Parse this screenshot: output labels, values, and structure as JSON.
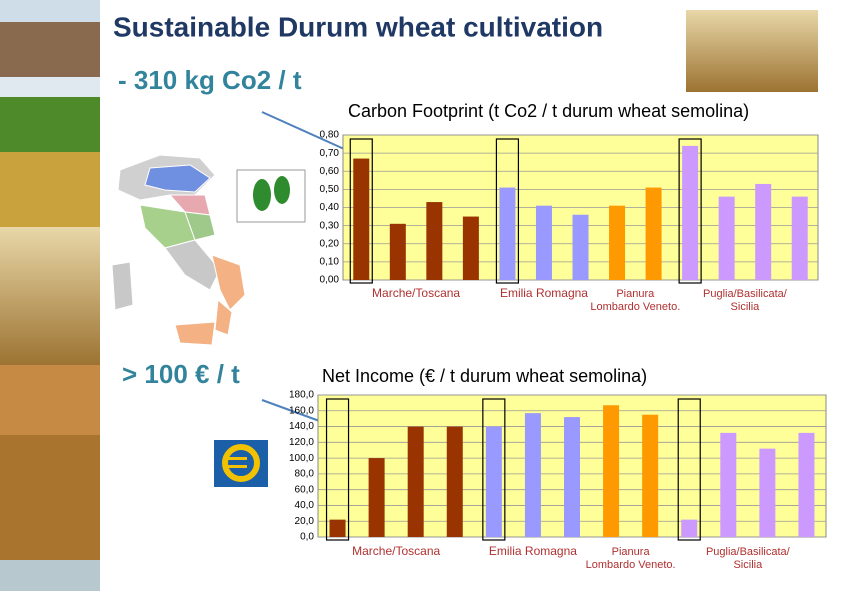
{
  "slide": {
    "title": "Sustainable Durum wheat cultivation",
    "annotations": [
      "- 310 kg Co2 / t",
      "> 100 € / t"
    ]
  },
  "chart_data": [
    {
      "type": "bar",
      "title": "Carbon Footprint (t Co2 / t durum wheat semolina)",
      "ylim": [
        0,
        0.8
      ],
      "yticks": [
        {
          "value": 0,
          "label": "0,00"
        },
        {
          "value": 0.1,
          "label": "0,10"
        },
        {
          "value": 0.2,
          "label": "0,20"
        },
        {
          "value": 0.3,
          "label": "0,30"
        },
        {
          "value": 0.4,
          "label": "0,40"
        },
        {
          "value": 0.5,
          "label": "0,50"
        },
        {
          "value": 0.6,
          "label": "0,60"
        },
        {
          "value": 0.7,
          "label": "0,70"
        },
        {
          "value": 0.8,
          "label": "0,80"
        }
      ],
      "grid": true,
      "groups": [
        {
          "label": [
            "Marche/Toscana"
          ],
          "color": "#993300",
          "values": [
            0.67,
            0.31,
            0.43,
            0.35
          ],
          "boxed": 0
        },
        {
          "label": [
            "Emilia Romagna"
          ],
          "color": "#9999ff",
          "values": [
            0.51,
            0.41,
            0.36
          ],
          "boxed": 0
        },
        {
          "label": [
            "Pianura",
            "Lombardo Veneto."
          ],
          "color": "#ff9900",
          "values": [
            0.41,
            0.51
          ]
        },
        {
          "label": [
            "Puglia/Basilicata/",
            "Sicilia"
          ],
          "color": "#cc99ff",
          "values": [
            0.74,
            0.46,
            0.53,
            0.46
          ],
          "boxed": 0
        }
      ]
    },
    {
      "type": "bar",
      "title": "Net Income (€ / t durum wheat semolina)",
      "ylim": [
        0,
        180
      ],
      "yticks": [
        {
          "value": 0,
          "label": "0,0"
        },
        {
          "value": 20,
          "label": "20,0"
        },
        {
          "value": 40,
          "label": "40,0"
        },
        {
          "value": 60,
          "label": "60,0"
        },
        {
          "value": 80,
          "label": "80,0"
        },
        {
          "value": 100,
          "label": "100,0"
        },
        {
          "value": 120,
          "label": "120,0"
        },
        {
          "value": 140,
          "label": "140,0"
        },
        {
          "value": 160,
          "label": "160,0"
        },
        {
          "value": 180,
          "label": "180,0"
        }
      ],
      "grid": true,
      "groups": [
        {
          "label": [
            "Marche/Toscana"
          ],
          "color": "#993300",
          "values": [
            22,
            100,
            140,
            140
          ],
          "boxed": 0
        },
        {
          "label": [
            "Emilia Romagna"
          ],
          "color": "#9999ff",
          "values": [
            140,
            157,
            152
          ],
          "boxed": 0
        },
        {
          "label": [
            "Pianura",
            "Lombardo Veneto."
          ],
          "color": "#ff9900",
          "values": [
            167,
            155
          ]
        },
        {
          "label": [
            "Puglia/Basilicata/",
            "Sicilia"
          ],
          "color": "#cc99ff",
          "values": [
            22,
            132,
            112,
            132
          ],
          "boxed": 0
        }
      ]
    }
  ]
}
